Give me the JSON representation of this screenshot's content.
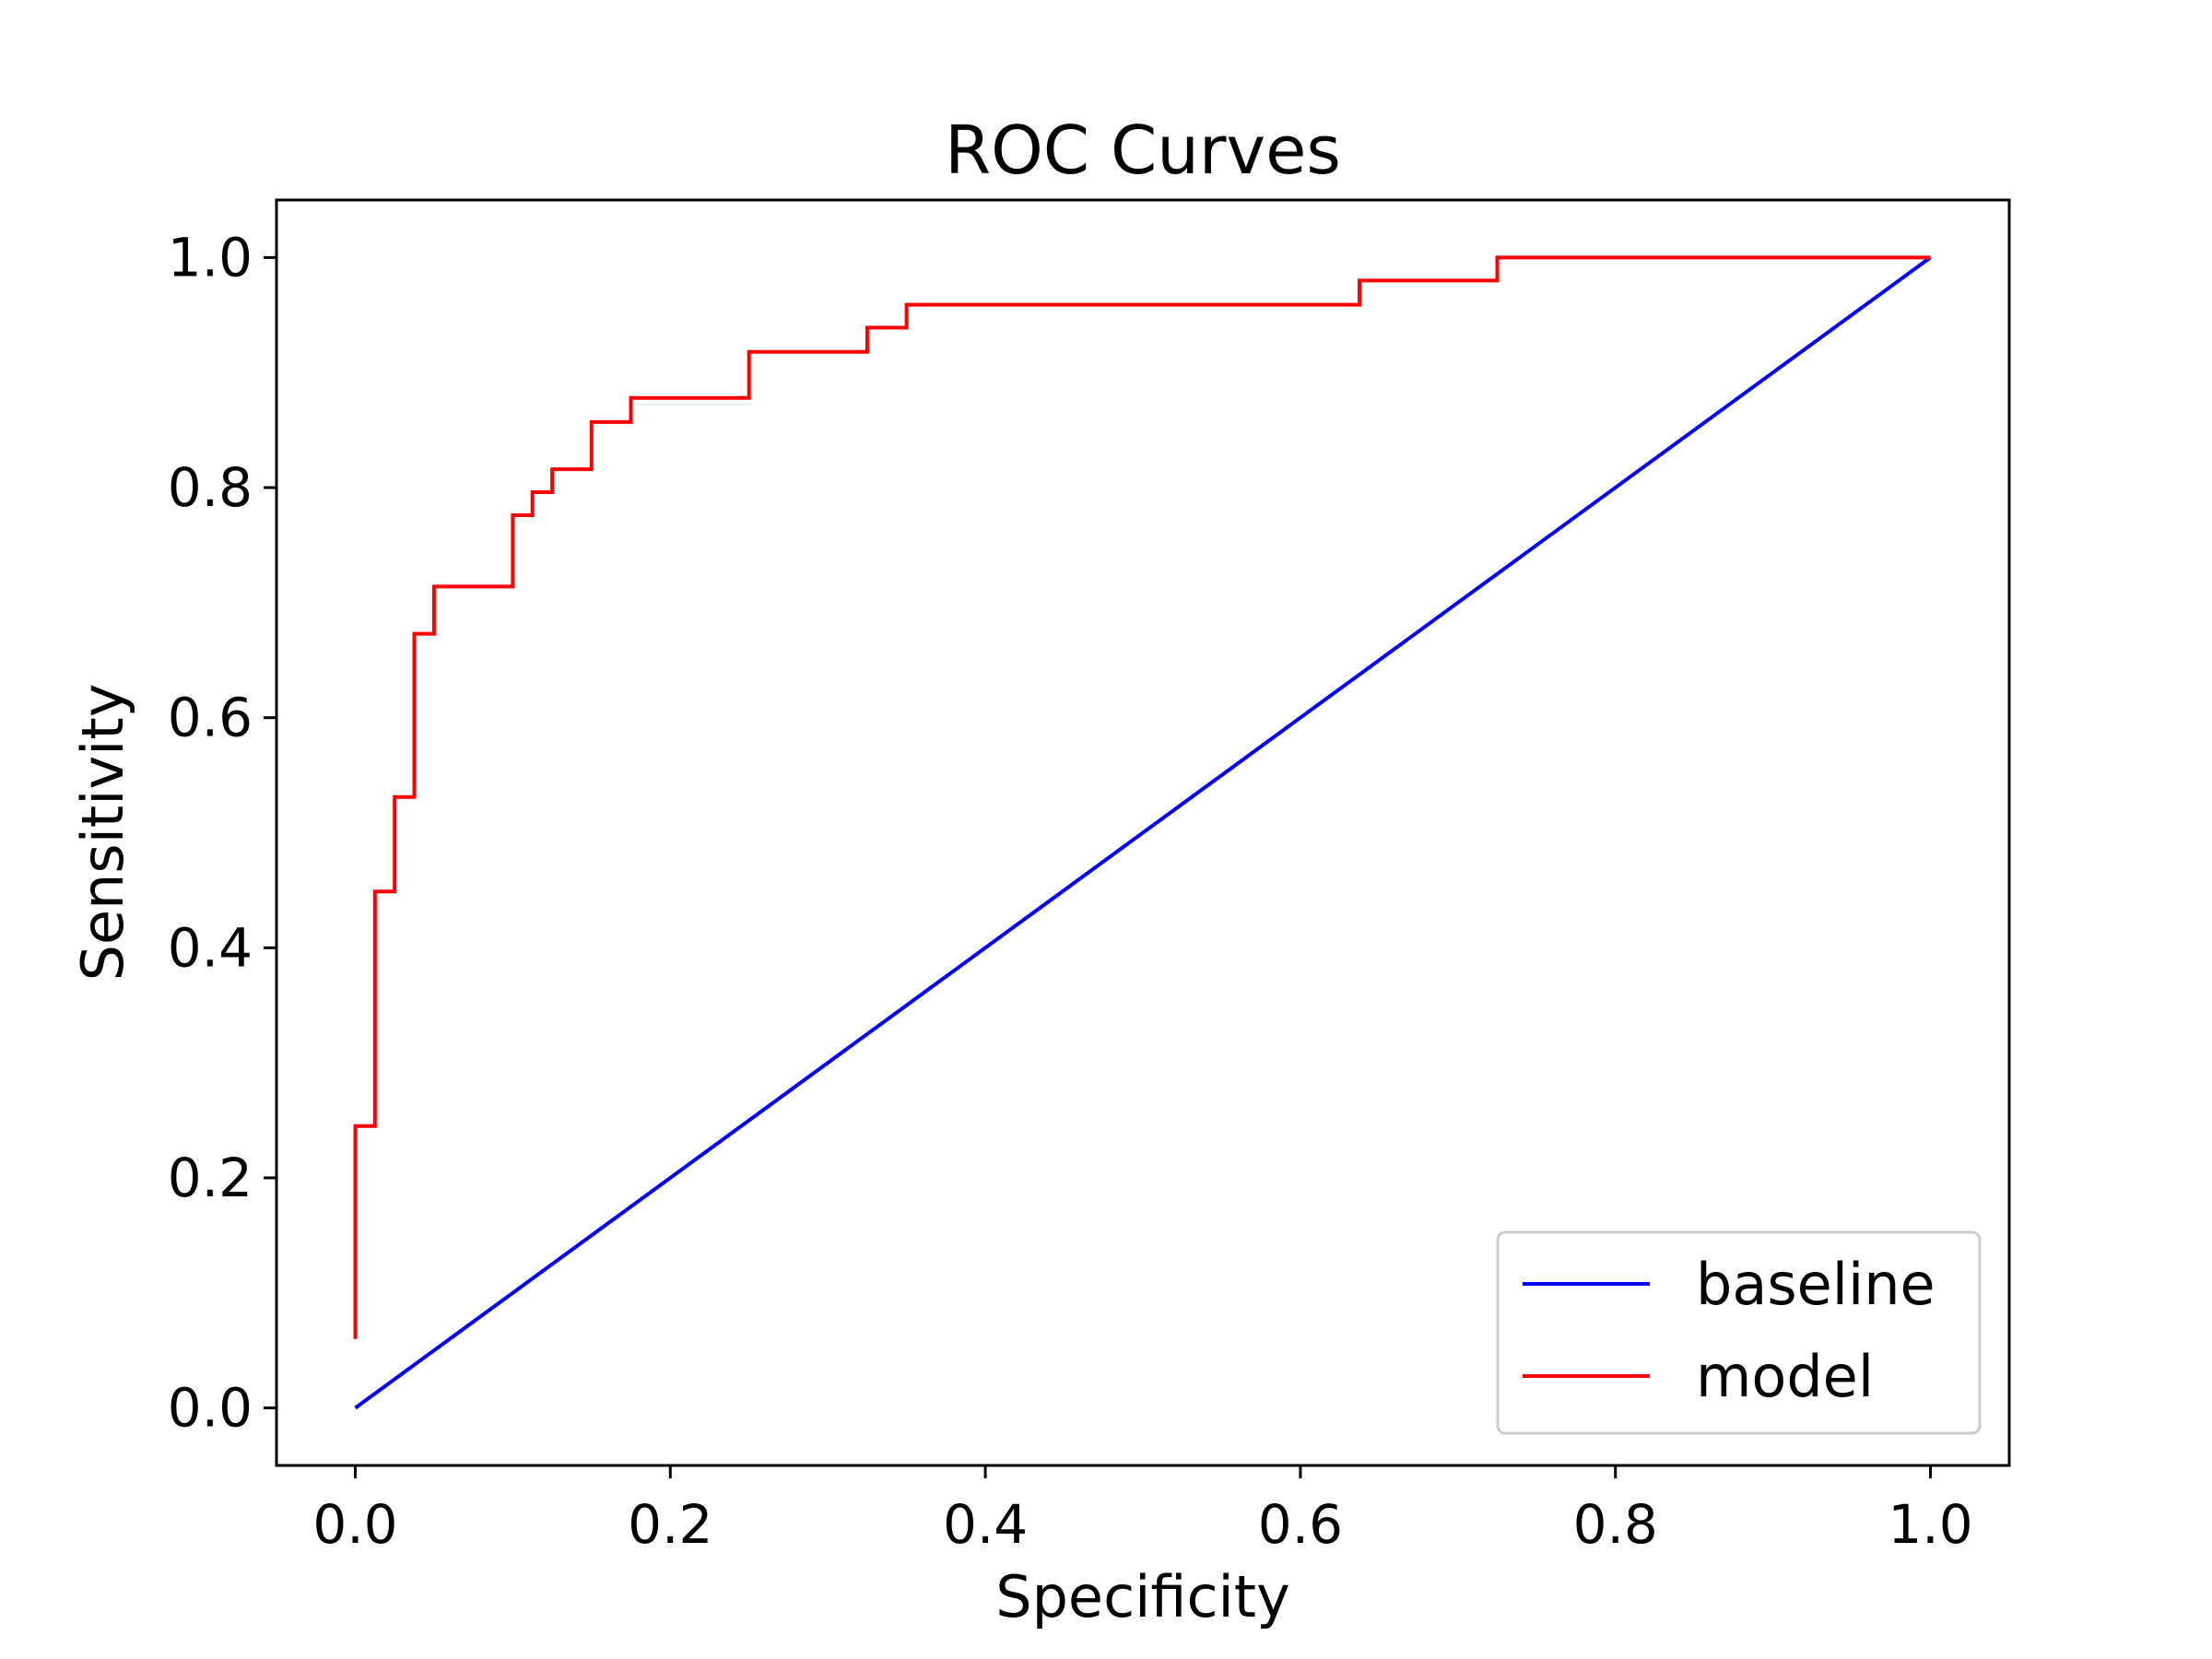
{
  "chart_data": {
    "type": "line",
    "title": "ROC Curves",
    "xlabel": "Specificity",
    "ylabel": "Sensitivity",
    "xlim": [
      -0.05,
      1.05
    ],
    "ylim": [
      -0.05,
      1.05
    ],
    "x_ticks": [
      0.0,
      0.2,
      0.4,
      0.6,
      0.8,
      1.0
    ],
    "x_tick_labels": [
      "0.0",
      "0.2",
      "0.4",
      "0.6",
      "0.8",
      "1.0"
    ],
    "y_ticks": [
      0.0,
      0.2,
      0.4,
      0.6,
      0.8,
      1.0
    ],
    "y_tick_labels": [
      "0.0",
      "0.2",
      "0.4",
      "0.6",
      "0.8",
      "1.0"
    ],
    "grid": false,
    "legend_position": "lower right",
    "series": [
      {
        "name": "baseline",
        "color": "#0000ff",
        "x": [
          0.0,
          1.0
        ],
        "y": [
          0.0,
          1.0
        ]
      },
      {
        "name": "model",
        "color": "#ff0000",
        "x": [
          0.0,
          0.0,
          0.0125,
          0.0125,
          0.025,
          0.025,
          0.0375,
          0.0375,
          0.05,
          0.05,
          0.1,
          0.1,
          0.1125,
          0.1125,
          0.125,
          0.125,
          0.15,
          0.15,
          0.175,
          0.175,
          0.25,
          0.25,
          0.325,
          0.325,
          0.35,
          0.35,
          0.6375,
          0.6375,
          0.725,
          0.725,
          1.0
        ],
        "y": [
          0.06,
          0.245,
          0.245,
          0.449,
          0.449,
          0.531,
          0.531,
          0.673,
          0.673,
          0.714,
          0.714,
          0.776,
          0.776,
          0.796,
          0.796,
          0.816,
          0.816,
          0.857,
          0.857,
          0.878,
          0.878,
          0.918,
          0.918,
          0.939,
          0.939,
          0.959,
          0.959,
          0.98,
          0.98,
          1.0,
          1.0
        ]
      }
    ]
  }
}
